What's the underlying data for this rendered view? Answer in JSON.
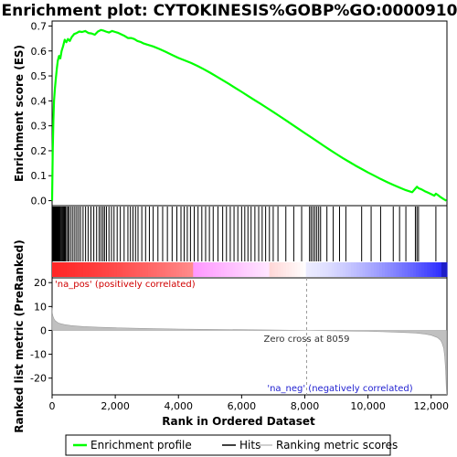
{
  "chart_data": {
    "type": "line",
    "title": "Enrichment plot: CYTOKINESIS%GOBP%GO:0000910",
    "xlabel": "Rank in Ordered Dataset",
    "ylabel_top": "Enrichment score (ES)",
    "ylabel_bottom": "Ranked list metric (PreRanked)",
    "x_range": [
      0,
      12500
    ],
    "x_ticks": [
      0,
      2000,
      4000,
      6000,
      8000,
      10000,
      12000
    ],
    "x_tick_labels": [
      "0",
      "2,000",
      "4,000",
      "6,000",
      "8,000",
      "10,000",
      "12,000"
    ],
    "es_ylim": [
      -0.02,
      0.72
    ],
    "es_ticks": [
      0.0,
      0.1,
      0.2,
      0.3,
      0.4,
      0.5,
      0.6,
      0.7
    ],
    "es_tick_labels": [
      "0.0",
      "0.1",
      "0.2",
      "0.3",
      "0.4",
      "0.5",
      "0.6",
      "0.7"
    ],
    "metric_ylim": [
      -27,
      22
    ],
    "metric_ticks": [
      20,
      10,
      0,
      -10,
      -20
    ],
    "metric_tick_labels": [
      "20",
      "10",
      "0",
      "-10",
      "-20"
    ],
    "zero_cross": 8059,
    "zero_cross_label": "Zero cross at 8059",
    "pos_label": "'na_pos' (positively correlated)",
    "neg_label": "'na_neg' (negatively correlated)",
    "series": [
      {
        "name": "Enrichment profile",
        "color": "#00ff00",
        "x": [
          0,
          20,
          40,
          60,
          90,
          120,
          150,
          180,
          220,
          260,
          300,
          350,
          400,
          450,
          500,
          560,
          620,
          700,
          780,
          860,
          950,
          1050,
          1150,
          1250,
          1350,
          1450,
          1550,
          1620,
          1700,
          1800,
          1900,
          2000,
          2100,
          2200,
          2300,
          2400,
          2500,
          2600,
          2700,
          2800,
          2900,
          3000,
          3200,
          3400,
          3600,
          3800,
          4000,
          4200,
          4400,
          4600,
          4800,
          5000,
          5200,
          5400,
          5600,
          5800,
          6000,
          6200,
          6400,
          6600,
          6800,
          7000,
          7200,
          7400,
          7600,
          7800,
          8000,
          8200,
          8400,
          8600,
          8800,
          9000,
          9200,
          9400,
          9600,
          9800,
          10000,
          10200,
          10400,
          10600,
          10800,
          11000,
          11200,
          11400,
          11500,
          11550,
          11600,
          11700,
          11800,
          11900,
          12000,
          12100,
          12150,
          12200,
          12300,
          12400,
          12480
        ],
        "values": [
          0.0,
          0.2,
          0.32,
          0.4,
          0.45,
          0.49,
          0.53,
          0.56,
          0.58,
          0.57,
          0.6,
          0.62,
          0.645,
          0.635,
          0.648,
          0.64,
          0.655,
          0.668,
          0.672,
          0.678,
          0.676,
          0.68,
          0.672,
          0.67,
          0.665,
          0.678,
          0.684,
          0.682,
          0.678,
          0.674,
          0.68,
          0.676,
          0.672,
          0.666,
          0.66,
          0.652,
          0.652,
          0.648,
          0.64,
          0.636,
          0.63,
          0.626,
          0.618,
          0.608,
          0.596,
          0.584,
          0.572,
          0.562,
          0.552,
          0.54,
          0.527,
          0.513,
          0.498,
          0.483,
          0.468,
          0.452,
          0.436,
          0.42,
          0.404,
          0.388,
          0.372,
          0.356,
          0.339,
          0.322,
          0.305,
          0.288,
          0.271,
          0.254,
          0.237,
          0.22,
          0.203,
          0.187,
          0.171,
          0.156,
          0.141,
          0.127,
          0.113,
          0.1,
          0.087,
          0.075,
          0.063,
          0.052,
          0.042,
          0.034,
          0.048,
          0.056,
          0.05,
          0.045,
          0.038,
          0.032,
          0.026,
          0.02,
          0.028,
          0.024,
          0.014,
          0.006,
          0.0
        ]
      },
      {
        "name": "Hits",
        "color": "#000000",
        "positions": [
          10,
          30,
          45,
          60,
          75,
          90,
          110,
          125,
          140,
          160,
          180,
          200,
          220,
          245,
          270,
          300,
          330,
          360,
          390,
          420,
          460,
          500,
          540,
          600,
          660,
          720,
          780,
          840,
          900,
          980,
          1060,
          1140,
          1230,
          1320,
          1410,
          1490,
          1550,
          1610,
          1660,
          1720,
          1800,
          1880,
          1960,
          2060,
          2160,
          2280,
          2400,
          2480,
          2560,
          2640,
          2720,
          2840,
          2960,
          3080,
          3200,
          3350,
          3500,
          3650,
          3800,
          3950,
          4080,
          4180,
          4280,
          4380,
          4500,
          4620,
          4740,
          4860,
          4980,
          5100,
          5250,
          5400,
          5520,
          5640,
          5760,
          5880,
          6000,
          6100,
          6200,
          6300,
          6420,
          6540,
          6650,
          6760,
          6880,
          7000,
          7150,
          7400,
          7650,
          7900,
          8150,
          8200,
          8260,
          8320,
          8380,
          8440,
          8500,
          8700,
          8900,
          9100,
          9300,
          9800,
          10100,
          10400,
          10800,
          11000,
          11200,
          11500,
          11550,
          11600,
          12150
        ]
      },
      {
        "name": "Ranking metric scores",
        "color": "#c0c0c0",
        "x": [
          0,
          10,
          30,
          60,
          100,
          150,
          200,
          300,
          400,
          600,
          800,
          1000,
          1500,
          2000,
          3000,
          4000,
          5000,
          6000,
          7000,
          8059,
          9000,
          10000,
          10500,
          11000,
          11500,
          11800,
          12000,
          12200,
          12300,
          12350,
          12400,
          12430,
          12460,
          12480,
          12490
        ],
        "values": [
          9.5,
          7.2,
          5.8,
          4.8,
          4.0,
          3.5,
          3.1,
          2.7,
          2.4,
          2.0,
          1.8,
          1.6,
          1.3,
          1.1,
          0.8,
          0.55,
          0.4,
          0.28,
          0.15,
          0.0,
          -0.2,
          -0.4,
          -0.6,
          -0.8,
          -1.1,
          -1.5,
          -2.0,
          -3.0,
          -4.2,
          -5.5,
          -7.5,
          -11.0,
          -17.0,
          -24.0,
          -27.0
        ]
      }
    ],
    "legend": {
      "placement": "bottom",
      "entries": [
        "Enrichment profile",
        "Hits",
        "Ranking metric scores"
      ]
    },
    "grid": false
  }
}
